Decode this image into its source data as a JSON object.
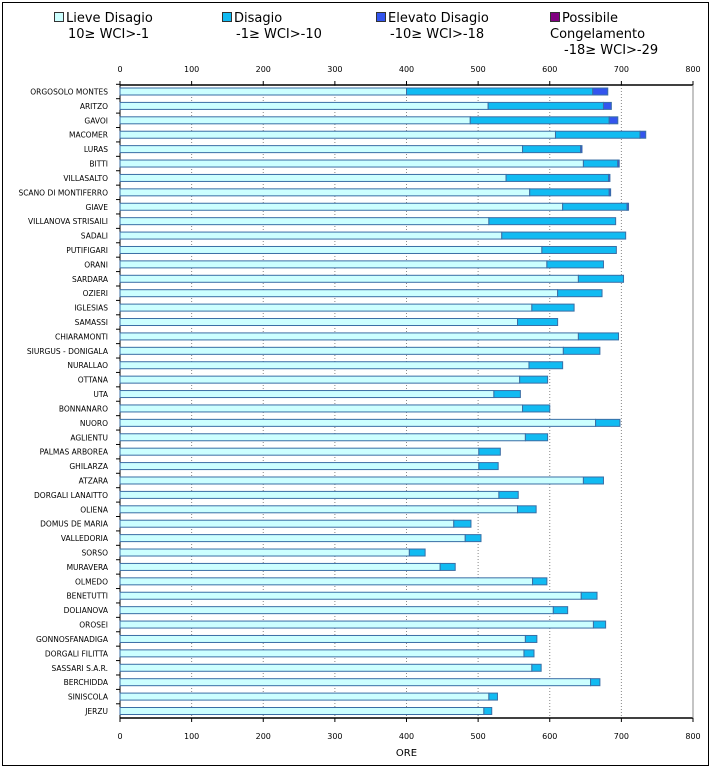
{
  "chart_data": {
    "type": "bar",
    "orientation": "horizontal",
    "stacked": true,
    "xlabel": "ORE",
    "xlim": [
      0,
      800
    ],
    "xticks": [
      "0",
      "100",
      "200",
      "300",
      "400",
      "500",
      "600",
      "700",
      "800"
    ],
    "grid": true,
    "legend_position": "top",
    "categories": [
      "ORGOSOLO MONTES",
      "ARITZO",
      "GAVOI",
      "MACOMER",
      "LURAS",
      "BITTI",
      "VILLASALTO",
      "SCANO DI MONTIFERRO",
      "GIAVE",
      "VILLANOVA STRISAILI",
      "SADALI",
      "PUTIFIGARI",
      "ORANI",
      "SARDARA",
      "OZIERI",
      "IGLESIAS",
      "SAMASSI",
      "CHIARAMONTI",
      "SIURGUS - DONIGALA",
      "NURALLAO",
      "OTTANA",
      "UTA",
      "BONNANARO",
      "NUORO",
      "AGLIENTU",
      "PALMAS ARBOREA",
      "GHILARZA",
      "ATZARA",
      "DORGALI LANAITTO",
      "OLIENA",
      "DOMUS DE MARIA",
      "VALLEDORIA",
      "SORSO",
      "MURAVERA",
      "OLMEDO",
      "BENETUTTI",
      "DOLIANOVA",
      "OROSEI",
      "GONNOSFANADIGA",
      "DORGALI FILITTA",
      "SASSARI S.A.R.",
      "BERCHIDDA",
      "SINISCOLA",
      "JERZU"
    ],
    "series": [
      {
        "name": "Lieve Disagio",
        "range": "10≥ WCI>-1",
        "color": "#ccffff",
        "values": [
          400,
          514,
          489,
          608,
          562,
          647,
          539,
          572,
          618,
          515,
          533,
          589,
          596,
          640,
          611,
          575,
          555,
          640,
          619,
          571,
          558,
          522,
          562,
          664,
          566,
          501,
          501,
          647,
          529,
          555,
          466,
          482,
          404,
          447,
          576,
          644,
          605,
          661,
          566,
          564,
          575,
          657,
          515,
          508
        ]
      },
      {
        "name": "Disagio",
        "range": "-1≥ WCI>-10",
        "color": "#11bbf2",
        "values": [
          260,
          161,
          194,
          118,
          81,
          48,
          143,
          111,
          90,
          177,
          173,
          104,
          79,
          63,
          62,
          59,
          56,
          56,
          51,
          47,
          39,
          37,
          38,
          34,
          31,
          30,
          27,
          28,
          27,
          26,
          24,
          22,
          22,
          21,
          20,
          22,
          20,
          17,
          16,
          14,
          13,
          13,
          12,
          11
        ]
      },
      {
        "name": "Elevato Disagio",
        "range": "-10≥ WCI>-18",
        "color": "#3355ee",
        "values": [
          21,
          11,
          12,
          8,
          2,
          2,
          2,
          2,
          2,
          0,
          0,
          0,
          0,
          0,
          0,
          0,
          0,
          0,
          0,
          0,
          0,
          0,
          0,
          0,
          0,
          0,
          0,
          0,
          0,
          0,
          0,
          0,
          0,
          0,
          0,
          0,
          0,
          0,
          0,
          0,
          0,
          0,
          0,
          0
        ]
      },
      {
        "name": "Possibile Congelamento",
        "range": "-18≥ WCI>-29",
        "color": "#800080",
        "values": [
          0,
          0,
          0,
          0,
          0,
          0,
          0,
          0,
          0,
          0,
          0,
          0,
          0,
          0,
          0,
          0,
          0,
          0,
          0,
          0,
          0,
          0,
          0,
          0,
          0,
          0,
          0,
          0,
          0,
          0,
          0,
          0,
          0,
          0,
          0,
          0,
          0,
          0,
          0,
          0,
          0,
          0,
          0,
          0
        ]
      }
    ]
  }
}
